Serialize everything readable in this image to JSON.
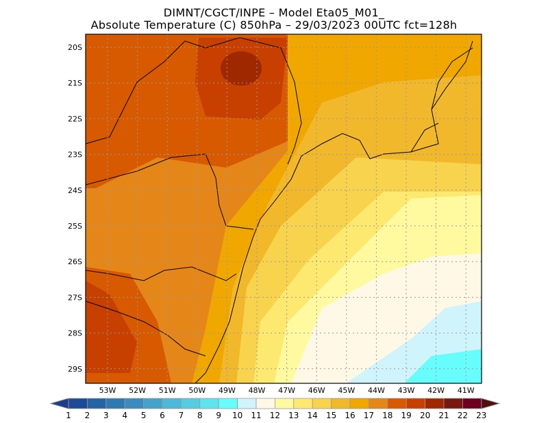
{
  "title": {
    "line1": "DIMNT/CGCT/INPE –  Model Eta05_M01_",
    "line2": "Absolute Temperature (C) 850hPa –  29/03/2023 00UTC fct=128h"
  },
  "map": {
    "lat_labels": [
      "20S",
      "21S",
      "22S",
      "23S",
      "24S",
      "25S",
      "26S",
      "27S",
      "28S",
      "29S"
    ],
    "lon_labels": [
      "53W",
      "52W",
      "51W",
      "50W",
      "49W",
      "48W",
      "47W",
      "46W",
      "45W",
      "44W",
      "43W",
      "42W",
      "41W"
    ],
    "variable": "Absolute Temperature",
    "units": "C",
    "level": "850hPa"
  },
  "colorbar": {
    "labels": [
      "1",
      "2",
      "3",
      "4",
      "5",
      "6",
      "7",
      "8",
      "9",
      "10",
      "11",
      "12",
      "13",
      "14",
      "15",
      "16",
      "17",
      "18",
      "19",
      "20",
      "21",
      "22",
      "23"
    ],
    "colors": [
      "#1c4a94",
      "#2463a4",
      "#2e78b3",
      "#3a8bbf",
      "#45a2cb",
      "#4db8d8",
      "#55ccdf",
      "#5ee4ee",
      "#66fdfc",
      "#d0f4fc",
      "#fff8e6",
      "#fffaa0",
      "#fde870",
      "#f8d44e",
      "#f0b82a",
      "#f0a800",
      "#e58618",
      "#d85a00",
      "#c84000",
      "#a02800",
      "#781810",
      "#6c0020"
    ],
    "low_arrow_color": "#1c3c8c",
    "high_arrow_color": "#501010"
  }
}
